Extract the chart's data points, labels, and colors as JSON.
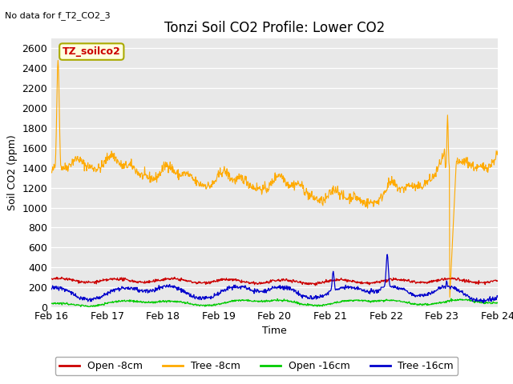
{
  "title": "Tonzi Soil CO2 Profile: Lower CO2",
  "no_data_text": "No data for f_T2_CO2_3",
  "legend_box_text": "TZ_soilco2",
  "xlabel": "Time",
  "ylabel": "Soil CO2 (ppm)",
  "ylim": [
    0,
    2700
  ],
  "yticks": [
    0,
    200,
    400,
    600,
    800,
    1000,
    1200,
    1400,
    1600,
    1800,
    2000,
    2200,
    2400,
    2600
  ],
  "xticklabels": [
    "Feb 16",
    "Feb 17",
    "Feb 18",
    "Feb 19",
    "Feb 20",
    "Feb 21",
    "Feb 22",
    "Feb 23",
    "Feb 24"
  ],
  "colors": {
    "open_8cm": "#cc0000",
    "tree_8cm": "#ffaa00",
    "open_16cm": "#00cc00",
    "tree_16cm": "#0000cc"
  },
  "fig_facecolor": "#ffffff",
  "ax_facecolor": "#e8e8e8",
  "grid_color": "#ffffff",
  "legend_entries": [
    "Open -8cm",
    "Tree -8cm",
    "Open -16cm",
    "Tree -16cm"
  ],
  "title_fontsize": 12,
  "axis_fontsize": 9,
  "tick_fontsize": 9
}
